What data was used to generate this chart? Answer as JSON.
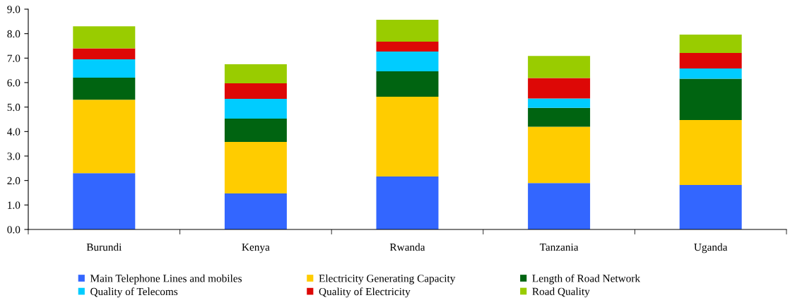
{
  "chart_data": {
    "type": "bar",
    "stacked": true,
    "categories": [
      "Burundi",
      "Kenya",
      "Rwanda",
      "Tanzania",
      "Uganda"
    ],
    "series": [
      {
        "name": "Main Telephone Lines and mobiles",
        "color": "#3366ff",
        "values": [
          2.3,
          1.47,
          2.16,
          1.9,
          1.82
        ]
      },
      {
        "name": "Electricity Generating Capacity",
        "color": "#ffcc00",
        "values": [
          3.0,
          2.11,
          3.26,
          2.3,
          2.65
        ]
      },
      {
        "name": "Length of Road Network",
        "color": "#006411",
        "values": [
          0.9,
          0.95,
          1.04,
          0.77,
          1.69
        ]
      },
      {
        "name": "Quality of Telecoms",
        "color": "#00ccff",
        "values": [
          0.75,
          0.81,
          0.81,
          0.38,
          0.42
        ]
      },
      {
        "name": "Quality of Electricity",
        "color": "#dd0806",
        "values": [
          0.45,
          0.63,
          0.4,
          0.84,
          0.63
        ]
      },
      {
        "name": "Road Quality",
        "color": "#99cc00",
        "values": [
          0.9,
          0.78,
          0.9,
          0.9,
          0.75
        ]
      }
    ],
    "ylim": [
      0,
      9
    ],
    "yticks": [
      {
        "value": 0,
        "label": "0.0"
      },
      {
        "value": 1,
        "label": "1.0"
      },
      {
        "value": 2,
        "label": "2.0"
      },
      {
        "value": 3,
        "label": "3.0"
      },
      {
        "value": 4,
        "label": "4.0"
      },
      {
        "value": 5,
        "label": "5.0"
      },
      {
        "value": 6,
        "label": "6.0"
      },
      {
        "value": 7,
        "label": "7.0"
      },
      {
        "value": 8,
        "label": "8.0"
      },
      {
        "value": 9,
        "label": "9.0"
      }
    ],
    "grid": false,
    "legend": "bottom"
  }
}
